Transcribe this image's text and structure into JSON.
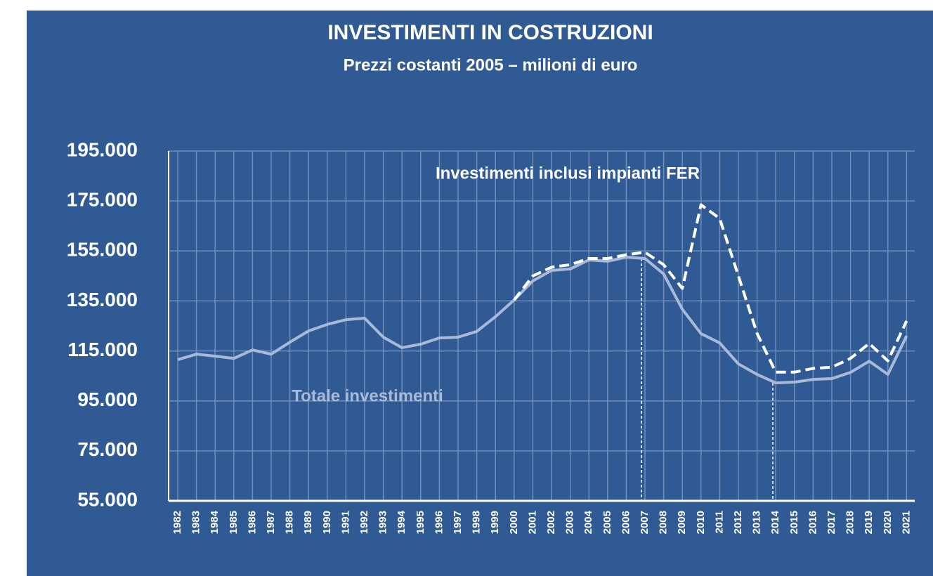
{
  "chart_data": {
    "type": "line",
    "title": "INVESTIMENTI IN COSTRUZIONI",
    "subtitle": "Prezzi costanti 2005 – milioni di euro",
    "categories": [
      "1982",
      "1983",
      "1984",
      "1985",
      "1986",
      "1987",
      "1988",
      "1989",
      "1990",
      "1991",
      "1992",
      "1993",
      "1994",
      "1995",
      "1996",
      "1997",
      "1998",
      "1999",
      "2000",
      "2001",
      "2002",
      "2003",
      "2004",
      "2005",
      "2006",
      "2007",
      "2008",
      "2009",
      "2010",
      "2011",
      "2012",
      "2013",
      "2014",
      "2015",
      "2016",
      "2017",
      "2018",
      "2019",
      "2020",
      "2021"
    ],
    "series": [
      {
        "name": "Totale investimenti",
        "color": "#a9b9d8",
        "values": [
          111500,
          113700,
          112900,
          112000,
          115400,
          113700,
          118500,
          123000,
          125600,
          127500,
          128100,
          120500,
          116300,
          117700,
          120200,
          120500,
          122800,
          128700,
          135400,
          143000,
          147200,
          147800,
          151400,
          150900,
          152500,
          152000,
          145800,
          131700,
          121900,
          118200,
          109800,
          105600,
          102200,
          102500,
          103600,
          103900,
          106400,
          110900,
          105600,
          121000
        ]
      },
      {
        "name": "Investimenti inclusi impianti FER",
        "color": "#ffffff",
        "values": [
          null,
          null,
          null,
          null,
          null,
          null,
          null,
          null,
          null,
          null,
          null,
          null,
          null,
          null,
          null,
          null,
          null,
          null,
          135400,
          145000,
          148500,
          149500,
          152000,
          152000,
          153500,
          154500,
          149500,
          140000,
          173500,
          168000,
          145000,
          122000,
          106500,
          106500,
          108000,
          108500,
          112000,
          118000,
          111000,
          127000
        ]
      }
    ],
    "ylim": [
      55000,
      195000
    ],
    "yticks": [
      {
        "value": 55000,
        "label": "55.000"
      },
      {
        "value": 75000,
        "label": "75.000"
      },
      {
        "value": 95000,
        "label": "95.000"
      },
      {
        "value": 115000,
        "label": "115.000"
      },
      {
        "value": 135000,
        "label": "135.000"
      },
      {
        "value": 155000,
        "label": "155.000"
      },
      {
        "value": 175000,
        "label": "175.000"
      },
      {
        "value": 195000,
        "label": "195.000"
      }
    ],
    "grid": true
  }
}
